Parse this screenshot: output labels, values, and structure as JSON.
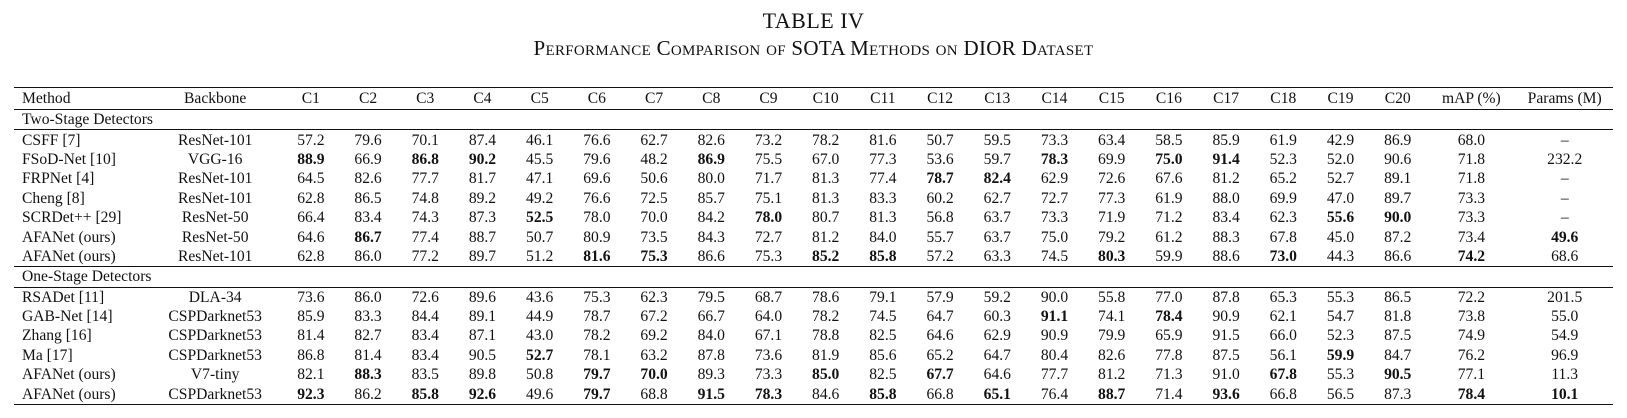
{
  "caption": {
    "table_number": "TABLE IV",
    "title": "Performance Comparison of SOTA Methods on DIOR Dataset"
  },
  "columns": [
    "Method",
    "Backbone",
    "C1",
    "C2",
    "C3",
    "C4",
    "C5",
    "C6",
    "C7",
    "C8",
    "C9",
    "C10",
    "C11",
    "C12",
    "C13",
    "C14",
    "C15",
    "C16",
    "C17",
    "C18",
    "C19",
    "C20",
    "mAP (%)",
    "Params (M)"
  ],
  "groups": [
    {
      "label": "Two-Stage Detectors",
      "rows": [
        {
          "cells": [
            "CSFF [7]",
            "ResNet-101",
            "57.2",
            "79.6",
            "70.1",
            "87.4",
            "46.1",
            "76.6",
            "62.7",
            "82.6",
            "73.2",
            "78.2",
            "81.6",
            "50.7",
            "59.5",
            "73.3",
            "63.4",
            "58.5",
            "85.9",
            "61.9",
            "42.9",
            "86.9",
            "68.0",
            "–"
          ],
          "bold": []
        },
        {
          "cells": [
            "FSoD-Net [10]",
            "VGG-16",
            "88.9",
            "66.9",
            "86.8",
            "90.2",
            "45.5",
            "79.6",
            "48.2",
            "86.9",
            "75.5",
            "67.0",
            "77.3",
            "53.6",
            "59.7",
            "78.3",
            "69.9",
            "75.0",
            "91.4",
            "52.3",
            "52.0",
            "90.6",
            "71.8",
            "232.2"
          ],
          "bold": [
            2,
            4,
            5,
            9,
            15,
            17,
            18
          ]
        },
        {
          "cells": [
            "FRPNet [4]",
            "ResNet-101",
            "64.5",
            "82.6",
            "77.7",
            "81.7",
            "47.1",
            "69.6",
            "50.6",
            "80.0",
            "71.7",
            "81.3",
            "77.4",
            "78.7",
            "82.4",
            "62.9",
            "72.6",
            "67.6",
            "81.2",
            "65.2",
            "52.7",
            "89.1",
            "71.8",
            "–"
          ],
          "bold": [
            13,
            14
          ]
        },
        {
          "cells": [
            "Cheng [8]",
            "ResNet-101",
            "62.8",
            "86.5",
            "74.8",
            "89.2",
            "49.2",
            "76.6",
            "72.5",
            "85.7",
            "75.1",
            "81.3",
            "83.3",
            "60.2",
            "62.7",
            "72.7",
            "77.3",
            "61.9",
            "88.0",
            "69.9",
            "47.0",
            "89.7",
            "73.3",
            "–"
          ],
          "bold": []
        },
        {
          "cells": [
            "SCRDet++ [29]",
            "ResNet-50",
            "66.4",
            "83.4",
            "74.3",
            "87.3",
            "52.5",
            "78.0",
            "70.0",
            "84.2",
            "78.0",
            "80.7",
            "81.3",
            "56.8",
            "63.7",
            "73.3",
            "71.9",
            "71.2",
            "83.4",
            "62.3",
            "55.6",
            "90.0",
            "73.3",
            "–"
          ],
          "bold": [
            6,
            10,
            20,
            21
          ]
        },
        {
          "cells": [
            "AFANet (ours)",
            "ResNet-50",
            "64.6",
            "86.7",
            "77.4",
            "88.7",
            "50.7",
            "80.9",
            "73.5",
            "84.3",
            "72.7",
            "81.2",
            "84.0",
            "55.7",
            "63.7",
            "75.0",
            "79.2",
            "61.2",
            "88.3",
            "67.8",
            "45.0",
            "87.2",
            "73.4",
            "49.6"
          ],
          "bold": [
            3,
            23
          ]
        },
        {
          "cells": [
            "AFANet (ours)",
            "ResNet-101",
            "62.8",
            "86.0",
            "77.2",
            "89.7",
            "51.2",
            "81.6",
            "75.3",
            "86.6",
            "75.3",
            "85.2",
            "85.8",
            "57.2",
            "63.3",
            "74.5",
            "80.3",
            "59.9",
            "88.6",
            "73.0",
            "44.3",
            "86.6",
            "74.2",
            "68.6"
          ],
          "bold": [
            7,
            8,
            11,
            12,
            16,
            19,
            22
          ]
        }
      ]
    },
    {
      "label": "One-Stage Detectors",
      "rows": [
        {
          "cells": [
            "RSADet [11]",
            "DLA-34",
            "73.6",
            "86.0",
            "72.6",
            "89.6",
            "43.6",
            "75.3",
            "62.3",
            "79.5",
            "68.7",
            "78.6",
            "79.1",
            "57.9",
            "59.2",
            "90.0",
            "55.8",
            "77.0",
            "87.8",
            "65.3",
            "55.3",
            "86.5",
            "72.2",
            "201.5"
          ],
          "bold": []
        },
        {
          "cells": [
            "GAB-Net [14]",
            "CSPDarknet53",
            "85.9",
            "83.3",
            "84.4",
            "89.1",
            "44.9",
            "78.7",
            "67.2",
            "66.7",
            "64.0",
            "78.2",
            "74.5",
            "64.7",
            "60.3",
            "91.1",
            "74.1",
            "78.4",
            "90.9",
            "62.1",
            "54.7",
            "81.8",
            "73.8",
            "55.0"
          ],
          "bold": [
            15,
            17
          ]
        },
        {
          "cells": [
            "Zhang [16]",
            "CSPDarknet53",
            "81.4",
            "82.7",
            "83.4",
            "87.1",
            "43.0",
            "78.2",
            "69.2",
            "84.0",
            "67.1",
            "78.8",
            "82.5",
            "64.6",
            "62.9",
            "90.9",
            "79.9",
            "65.9",
            "91.5",
            "66.0",
            "52.3",
            "87.5",
            "74.9",
            "54.9"
          ],
          "bold": []
        },
        {
          "cells": [
            "Ma [17]",
            "CSPDarknet53",
            "86.8",
            "81.4",
            "83.4",
            "90.5",
            "52.7",
            "78.1",
            "63.2",
            "87.8",
            "73.6",
            "81.9",
            "85.6",
            "65.2",
            "64.7",
            "80.4",
            "82.6",
            "77.8",
            "87.5",
            "56.1",
            "59.9",
            "84.7",
            "76.2",
            "96.9"
          ],
          "bold": [
            6,
            20
          ]
        },
        {
          "cells": [
            "AFANet (ours)",
            "V7-tiny",
            "82.1",
            "88.3",
            "83.5",
            "89.8",
            "50.8",
            "79.7",
            "70.0",
            "89.3",
            "73.3",
            "85.0",
            "82.5",
            "67.7",
            "64.6",
            "77.7",
            "81.2",
            "71.3",
            "91.0",
            "67.8",
            "55.3",
            "90.5",
            "77.1",
            "11.3"
          ],
          "bold": [
            3,
            7,
            8,
            11,
            13,
            19,
            21
          ]
        },
        {
          "cells": [
            "AFANet (ours)",
            "CSPDarknet53",
            "92.3",
            "86.2",
            "85.8",
            "92.6",
            "49.6",
            "79.7",
            "68.8",
            "91.5",
            "78.3",
            "84.6",
            "85.8",
            "66.8",
            "65.1",
            "76.4",
            "88.7",
            "71.4",
            "93.6",
            "66.8",
            "56.5",
            "87.3",
            "78.4",
            "10.1"
          ],
          "bold": [
            2,
            4,
            5,
            7,
            9,
            10,
            12,
            14,
            16,
            18,
            22,
            23
          ]
        }
      ]
    }
  ]
}
